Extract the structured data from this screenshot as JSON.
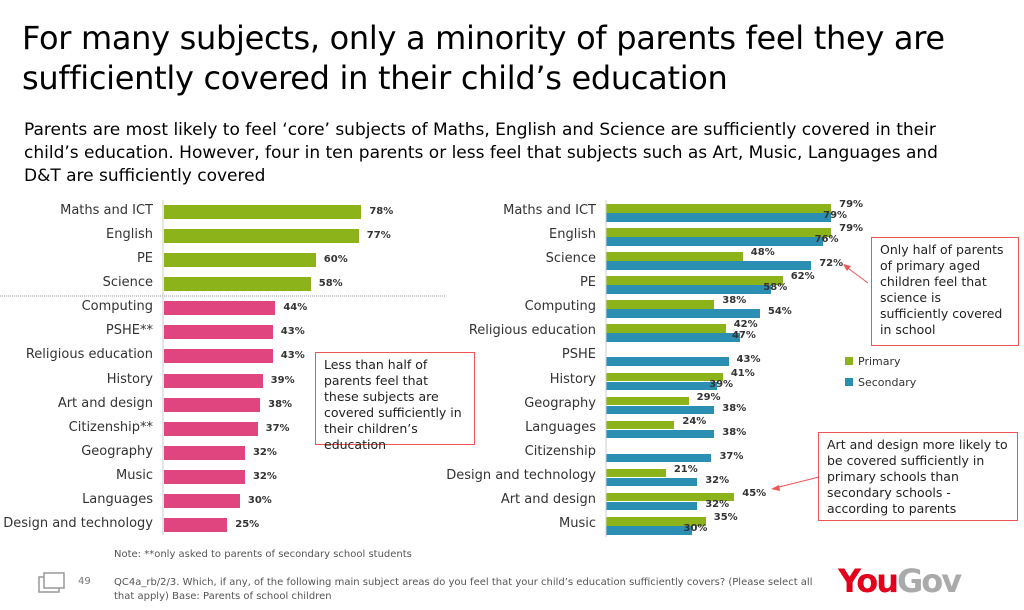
{
  "title": "For many subjects, only a minority of parents feel they are sufficiently covered in their child’s education",
  "subtitle": "Parents are most likely to feel ‘core’ subjects of Maths, English and Science are sufficiently covered in their child’s education. However, four in ten parents or less feel that subjects such as Art, Music, Languages and D&T are sufficiently covered",
  "colors": {
    "core": "#8db31a",
    "other": "#e0457f",
    "primary": "#8db31a",
    "secondary": "#2a8fb2",
    "callout_border": "#e55555"
  },
  "chart_data": [
    {
      "type": "bar",
      "orientation": "horizontal",
      "xlim": [
        0,
        100
      ],
      "categories": [
        "Maths and ICT",
        "English",
        "PE",
        "Science",
        "Computing",
        "PSHE**",
        "Religious education",
        "History",
        "Art and design",
        "Citizenship**",
        "Geography",
        "Music",
        "Languages",
        "Design and technology"
      ],
      "values": [
        78,
        77,
        60,
        58,
        44,
        43,
        43,
        39,
        38,
        37,
        32,
        32,
        30,
        25
      ],
      "labels": [
        "78%",
        "77%",
        "60%",
        "58%",
        "44%",
        "43%",
        "43%",
        "39%",
        "38%",
        "37%",
        "32%",
        "32%",
        "30%",
        "25%"
      ],
      "core_count": 4
    },
    {
      "type": "bar",
      "orientation": "horizontal",
      "xlim": [
        0,
        100
      ],
      "legend": "right",
      "categories": [
        "Maths and ICT",
        "English",
        "Science",
        "PE",
        "Computing",
        "Religious education",
        "PSHE",
        "History",
        "Geography",
        "Languages",
        "Citizenship",
        "Design and technology",
        "Art and design",
        "Music"
      ],
      "series": [
        {
          "name": "Primary",
          "values": [
            79,
            79,
            48,
            62,
            38,
            42,
            null,
            41,
            29,
            24,
            null,
            21,
            45,
            35
          ]
        },
        {
          "name": "Secondary",
          "values": [
            79,
            76,
            72,
            58,
            54,
            47,
            43,
            39,
            38,
            38,
            37,
            32,
            32,
            30
          ]
        }
      ]
    }
  ],
  "callouts": {
    "left": "Less than half of parents feel that these subjects are covered sufficiently in their children’s education",
    "science": "Only half of parents of primary aged children feel that science is sufficiently covered in school",
    "art": "Art and design more likely to be covered sufficiently in primary schools than secondary schools - according to parents"
  },
  "footer": {
    "note": "Note: **only asked to parents of secondary school students",
    "page": "49",
    "source": "QC4a_rb/2/3. Which, if any, of the following main subject areas do you feel that your child’s education sufficiently covers? (Please select all that apply) Base: Parents of school children",
    "logo_you": "You",
    "logo_gov": "Gov"
  }
}
